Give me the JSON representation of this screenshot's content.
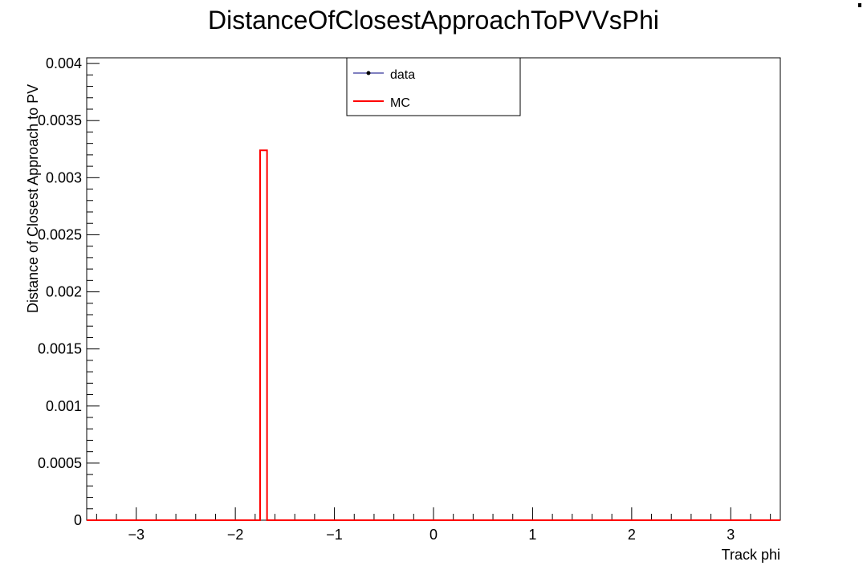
{
  "chart_data": {
    "type": "histogram",
    "title": "DistanceOfClosestApproachToPVVsPhi",
    "xlabel": "Track phi",
    "ylabel": "Distance of Closest Approach to PV",
    "xlim": [
      -3.5,
      3.5
    ],
    "ylim": [
      0,
      0.00405
    ],
    "x_ticks": [
      -3,
      -2,
      -1,
      0,
      1,
      2,
      3
    ],
    "x_tick_labels": [
      "−3",
      "−2",
      "−1",
      "0",
      "1",
      "2",
      "3"
    ],
    "y_ticks": [
      0,
      0.0005,
      0.001,
      0.0015,
      0.002,
      0.0025,
      0.003,
      0.0035,
      0.004
    ],
    "y_tick_labels": [
      "0",
      "0.0005",
      "0.001",
      "0.0015",
      "0.002",
      "0.0025",
      "0.003",
      "0.0035",
      "0.004"
    ],
    "legend": {
      "position": "top-center",
      "entries": [
        {
          "label": "data",
          "color": "#000080",
          "style": "line-marker"
        },
        {
          "label": "MC",
          "color": "#ff0000",
          "style": "line"
        }
      ]
    },
    "series": [
      {
        "name": "MC",
        "color": "#ff0000",
        "bins": [
          {
            "x_low": -1.75,
            "x_high": -1.68,
            "value": 0.00324
          }
        ],
        "baseline": 0
      },
      {
        "name": "data",
        "color": "#000080",
        "bins": []
      }
    ]
  }
}
